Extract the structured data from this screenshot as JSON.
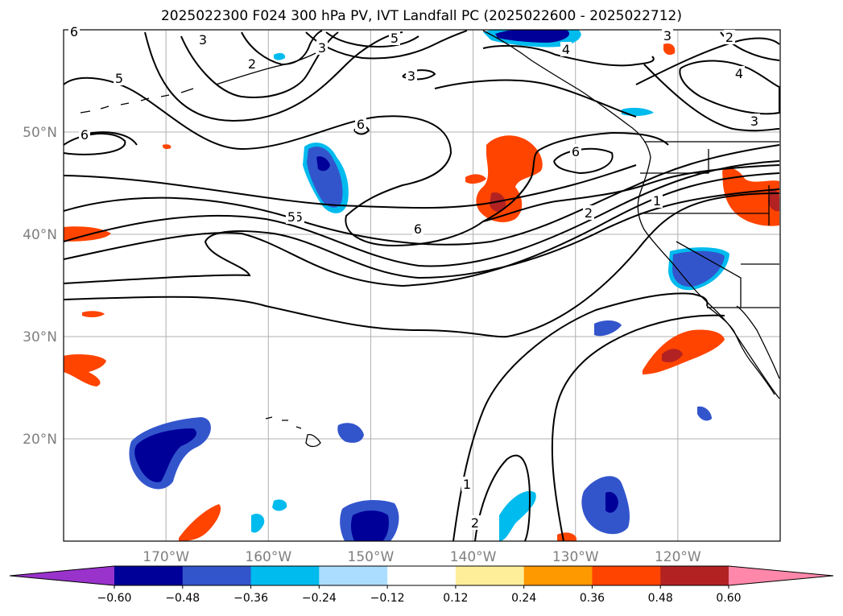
{
  "title": "2025022300 F024 300 hPa PV, IVT Landfall PC (2025022600 - 2025022712)",
  "map": {
    "lat_ticks": [
      {
        "label": "50°N",
        "lat": 50
      },
      {
        "label": "40°N",
        "lat": 40
      },
      {
        "label": "30°N",
        "lat": 30
      },
      {
        "label": "20°N",
        "lat": 20
      }
    ],
    "lon_ticks": [
      {
        "label": "170°W",
        "lon": -170
      },
      {
        "label": "160°W",
        "lon": -160
      },
      {
        "label": "150°W",
        "lon": -150
      },
      {
        "label": "140°W",
        "lon": -140
      },
      {
        "label": "130°W",
        "lon": -130
      },
      {
        "label": "120°W",
        "lon": -120
      }
    ],
    "extent": {
      "lon_min": -180,
      "lon_max": -110,
      "lat_min": 10,
      "lat_max": 60
    },
    "contour_labels": [
      "6",
      "3",
      "2",
      "5",
      "3",
      "5",
      "4",
      "3",
      "2",
      "4",
      "5",
      "3",
      "6",
      "6",
      "5",
      "6",
      "2",
      "1",
      "3",
      "1",
      "2",
      "6"
    ]
  },
  "colorbar": {
    "colors": [
      "#9933cc",
      "#000099",
      "#3355cc",
      "#00bbee",
      "#aaddff",
      "#ffffff",
      "#ffee99",
      "#ff9900",
      "#ff4400",
      "#b32222",
      "#ff88aa"
    ],
    "labels": [
      "−0.60",
      "−0.48",
      "−0.36",
      "−0.24",
      "−0.12",
      "0.12",
      "0.24",
      "0.36",
      "0.48",
      "0.60"
    ]
  }
}
